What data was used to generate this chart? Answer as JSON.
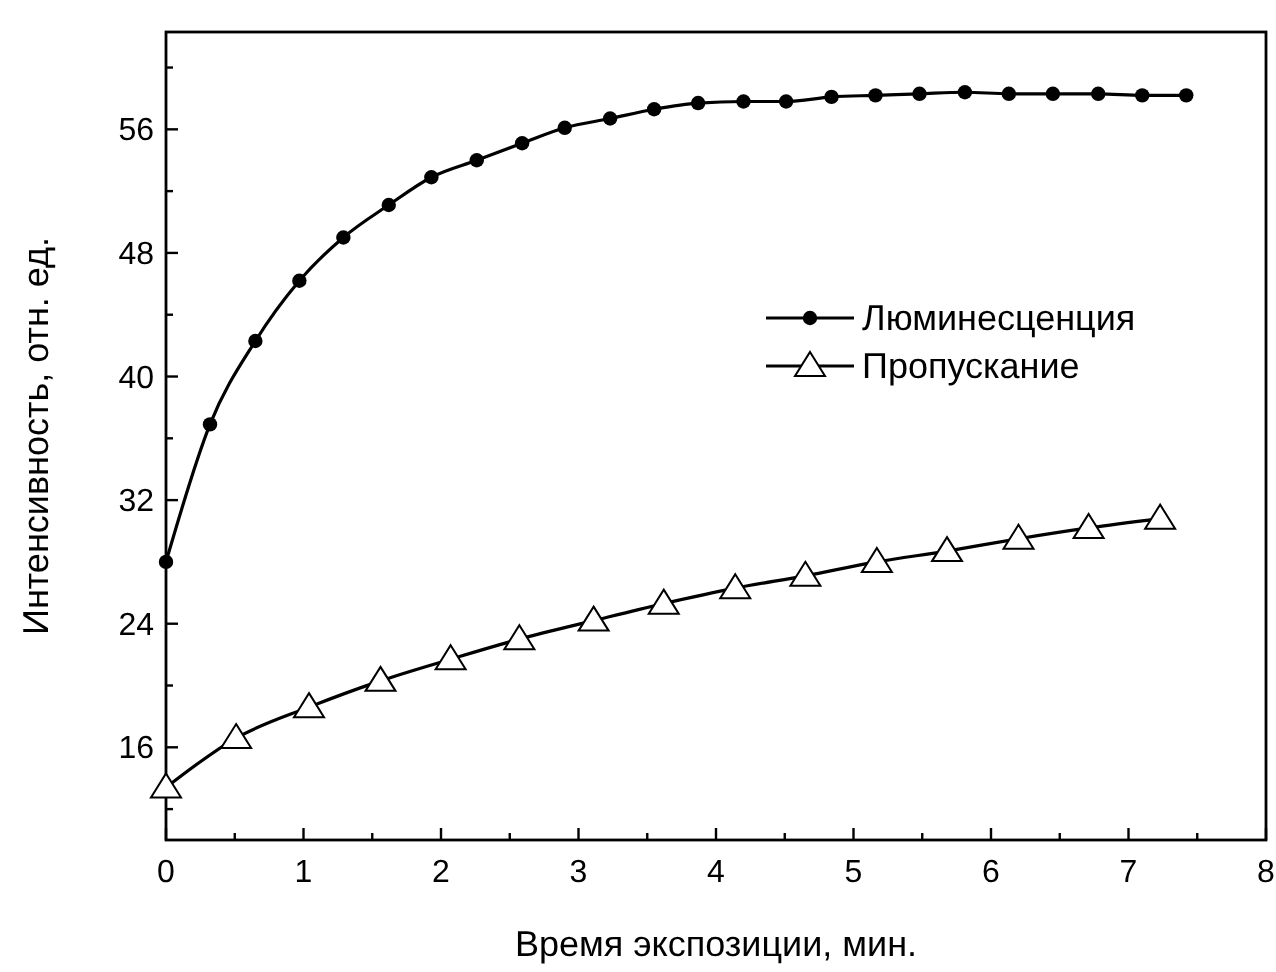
{
  "chart_data": {
    "type": "line",
    "xlabel": "Время экспозиции, мин.",
    "ylabel": "Интенсивность, отн. ед.",
    "xlim": [
      0,
      8
    ],
    "xticks": [
      0,
      1,
      2,
      3,
      4,
      5,
      6,
      7,
      8
    ],
    "ylim": [
      10,
      62.3
    ],
    "yticks": [
      16,
      24,
      32,
      40,
      48,
      56
    ],
    "grid": false,
    "legend": "right",
    "line_style": "solid",
    "series": [
      {
        "name": "Люминесценция",
        "color": "#000000",
        "marker": "circle",
        "x": [
          0,
          0.32,
          0.65,
          0.97,
          1.29,
          1.62,
          1.93,
          2.26,
          2.59,
          2.9,
          3.23,
          3.55,
          3.87,
          4.2,
          4.51,
          4.84,
          5.16,
          5.48,
          5.81,
          6.13,
          6.45,
          6.78,
          7.1,
          7.42
        ],
        "values": [
          28,
          36.9,
          42.3,
          46.2,
          49.0,
          51.1,
          52.9,
          54.0,
          55.1,
          56.1,
          56.7,
          57.3,
          57.7,
          57.8,
          57.8,
          58.1,
          58.2,
          58.3,
          58.4,
          58.3,
          58.3,
          58.3,
          58.2,
          58.2
        ]
      },
      {
        "name": "Пропускание",
        "color": "#000000",
        "marker": "triangle",
        "x": [
          0,
          0.51,
          1.04,
          1.56,
          2.07,
          2.57,
          3.11,
          3.62,
          4.14,
          4.65,
          5.17,
          5.68,
          6.2,
          6.71,
          7.23
        ],
        "values": [
          13.4,
          16.6,
          18.6,
          20.3,
          21.7,
          23.0,
          24.2,
          25.3,
          26.3,
          27.1,
          28.0,
          28.7,
          29.5,
          30.2,
          30.8
        ]
      }
    ]
  }
}
